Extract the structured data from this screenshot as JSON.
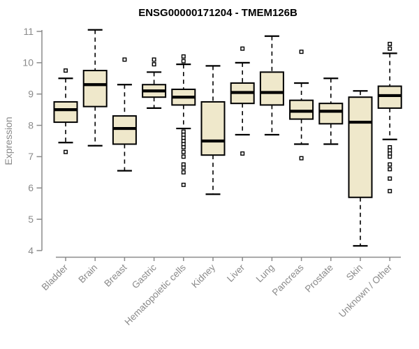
{
  "chart_data": {
    "type": "boxplot",
    "title": "ENSG00000171204 - TMEM126B",
    "ylabel": "Expression",
    "xlabel": "",
    "ylim": [
      4,
      11
    ],
    "yticks": [
      4,
      5,
      6,
      7,
      8,
      9,
      10,
      11
    ],
    "grid": false,
    "legend": "none",
    "categories": [
      "Bladder",
      "Brain",
      "Breast",
      "Gastric",
      "Hematopoietic cells",
      "Kidney",
      "Liver",
      "Lung",
      "Pancreas",
      "Prostate",
      "Skin",
      "Unknown / Other"
    ],
    "series": [
      {
        "category": "Bladder",
        "whisker_low": 7.45,
        "q1": 8.1,
        "median": 8.5,
        "q3": 8.75,
        "whisker_high": 9.5,
        "outliers": [
          9.75,
          7.15
        ]
      },
      {
        "category": "Brain",
        "whisker_low": 7.35,
        "q1": 8.6,
        "median": 9.3,
        "q3": 9.75,
        "whisker_high": 11.05,
        "outliers": []
      },
      {
        "category": "Breast",
        "whisker_low": 6.55,
        "q1": 7.4,
        "median": 7.9,
        "q3": 8.3,
        "whisker_high": 9.3,
        "outliers": [
          10.1
        ]
      },
      {
        "category": "Gastric",
        "whisker_low": 8.55,
        "q1": 8.9,
        "median": 9.1,
        "q3": 9.3,
        "whisker_high": 9.7,
        "outliers": [
          10.1,
          9.95
        ]
      },
      {
        "category": "Hematopoietic cells",
        "whisker_low": 7.9,
        "q1": 8.65,
        "median": 8.9,
        "q3": 9.15,
        "whisker_high": 9.95,
        "outliers": [
          10.2,
          10.05,
          7.8,
          7.7,
          7.6,
          7.5,
          7.4,
          7.3,
          7.15,
          7.0,
          6.75,
          6.65,
          6.5,
          6.1
        ]
      },
      {
        "category": "Kidney",
        "whisker_low": 5.8,
        "q1": 7.05,
        "median": 7.5,
        "q3": 8.75,
        "whisker_high": 9.9,
        "outliers": []
      },
      {
        "category": "Liver",
        "whisker_low": 7.7,
        "q1": 8.7,
        "median": 9.05,
        "q3": 9.35,
        "whisker_high": 10.0,
        "outliers": [
          10.45,
          7.1
        ]
      },
      {
        "category": "Lung",
        "whisker_low": 7.7,
        "q1": 8.65,
        "median": 9.05,
        "q3": 9.7,
        "whisker_high": 10.85,
        "outliers": []
      },
      {
        "category": "Pancreas",
        "whisker_low": 7.4,
        "q1": 8.2,
        "median": 8.45,
        "q3": 8.8,
        "whisker_high": 9.35,
        "outliers": [
          10.35,
          6.95
        ]
      },
      {
        "category": "Prostate",
        "whisker_low": 7.4,
        "q1": 8.05,
        "median": 8.45,
        "q3": 8.7,
        "whisker_high": 9.5,
        "outliers": []
      },
      {
        "category": "Skin",
        "whisker_low": 4.15,
        "q1": 5.7,
        "median": 8.1,
        "q3": 8.9,
        "whisker_high": 9.1,
        "outliers": []
      },
      {
        "category": "Unknown / Other",
        "whisker_low": 7.55,
        "q1": 8.55,
        "median": 8.95,
        "q3": 9.25,
        "whisker_high": 10.3,
        "outliers": [
          10.6,
          10.45,
          7.3,
          7.2,
          7.1,
          7.0,
          6.75,
          6.6,
          6.3,
          5.9
        ]
      }
    ],
    "colors": {
      "box_fill": "#efe8cb",
      "box_stroke": "#000000",
      "median": "#000000",
      "whisker": "#000000",
      "axis": "#8b8b8b",
      "tick_label": "#8a8a8a",
      "title": "#000000",
      "background": "#ffffff"
    }
  }
}
